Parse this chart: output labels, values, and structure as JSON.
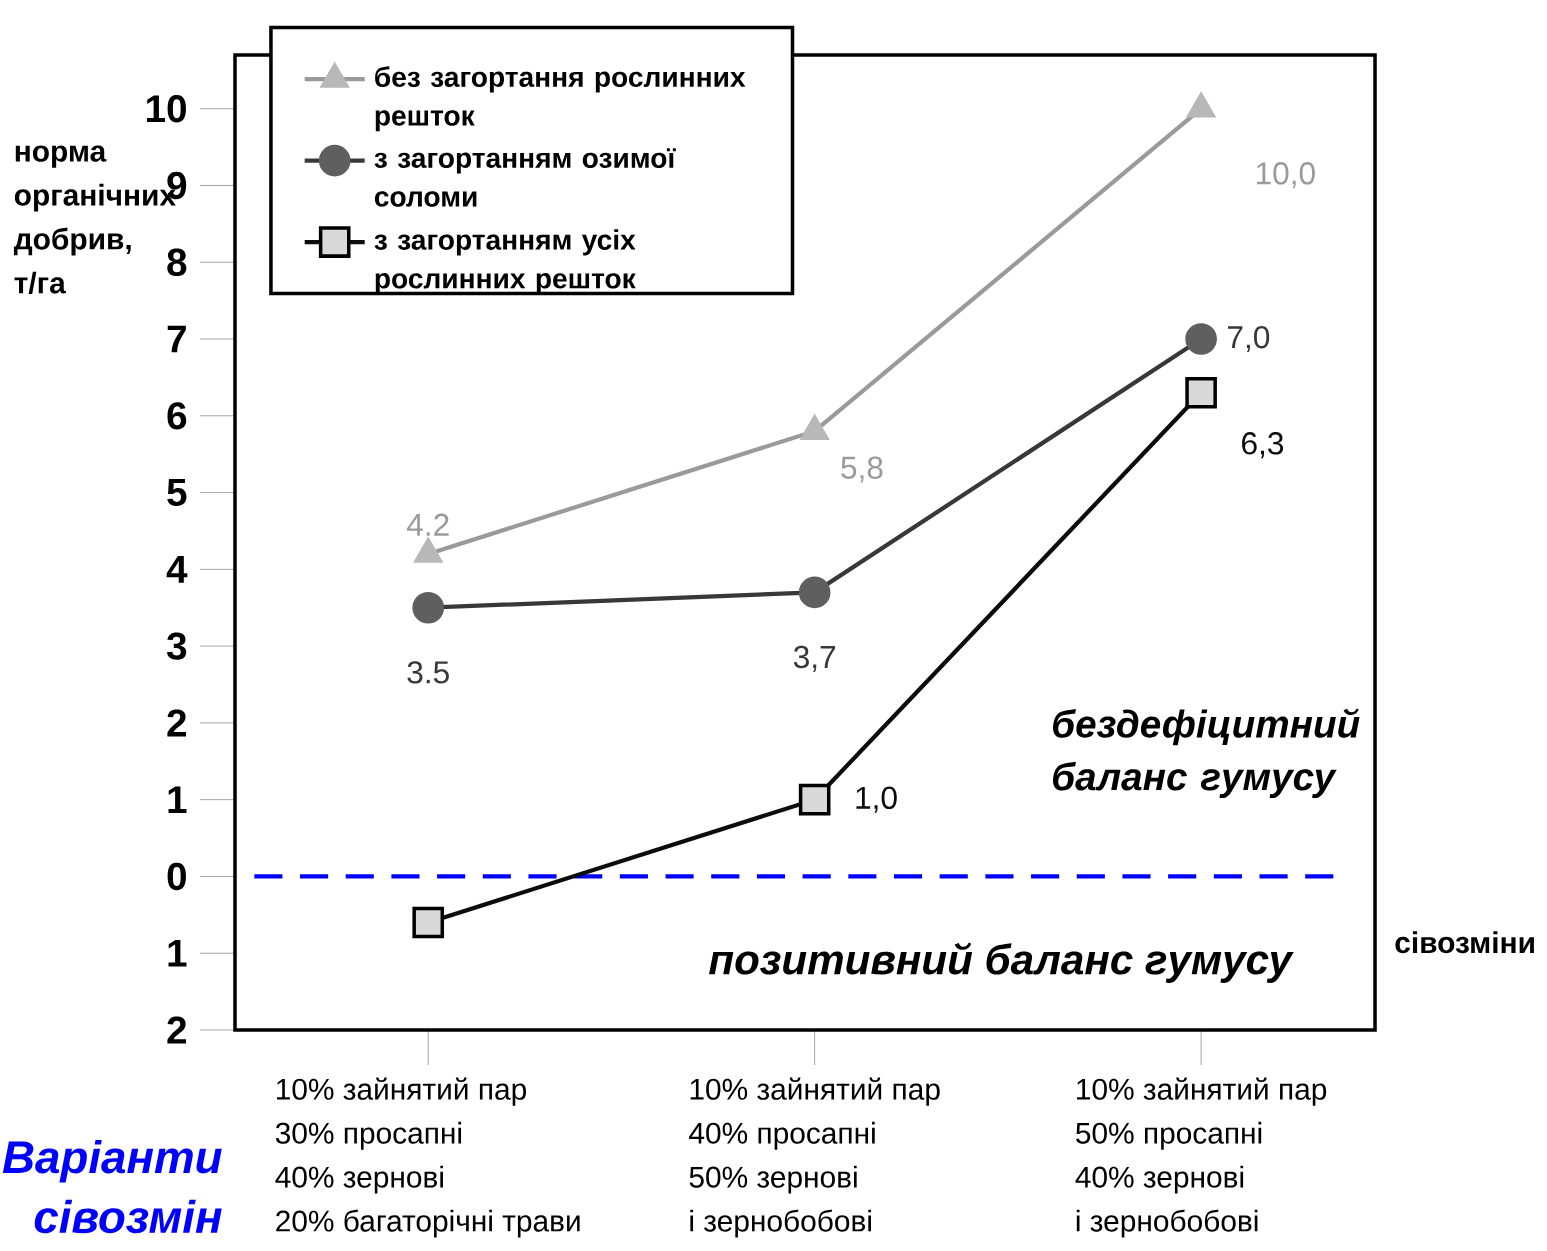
{
  "chart_data": {
    "type": "line",
    "ylabel": "норма органічних добрив, т/га",
    "xlabel": "сівозміни",
    "categories": [
      "10% зайнятий пар\n30% просапні\n40% зернові\n20% багаторічні трави",
      "10% зайнятий пар\n40% просапні\n50% зернові\nі зернобобові",
      "10% зайнятий пар\n50% просапні\n40% зернові\nі зернобобові"
    ],
    "series": [
      {
        "name": "без загортання рослинних решток",
        "color": "#9a9a9a",
        "marker": "triangle",
        "values": [
          4.2,
          5.8,
          10.0
        ],
        "value_labels": [
          "4.2",
          "5,8",
          "10,0"
        ]
      },
      {
        "name": "з загортанням озимої соломи",
        "color": "#383838",
        "marker": "circle",
        "values": [
          3.5,
          3.7,
          7.0
        ],
        "value_labels": [
          "3.5",
          "3,7",
          "7,0"
        ]
      },
      {
        "name": "з загортанням усіх рослинних решток",
        "color": "#0c0c0c",
        "marker": "square",
        "values": [
          -0.6,
          1.0,
          6.3
        ],
        "value_labels": [
          null,
          "1,0",
          "6,3"
        ]
      }
    ],
    "ylim": [
      -2,
      10.7
    ],
    "yticks": [
      {
        "value": -2,
        "label": "2"
      },
      {
        "value": -1,
        "label": "1"
      },
      0,
      1,
      2,
      3,
      4,
      5,
      6,
      7,
      8,
      9,
      10
    ],
    "ref_lines": [
      {
        "axis": "y",
        "value": 0,
        "color": "#0000ff",
        "line_style": "dashed"
      }
    ],
    "annotations": [
      "бездефіцитний баланс гумусу",
      "позитивний баланс гумусу",
      "Варіанти сівозмін"
    ],
    "legend": "top left",
    "grid": false,
    "line_style": "solid"
  }
}
